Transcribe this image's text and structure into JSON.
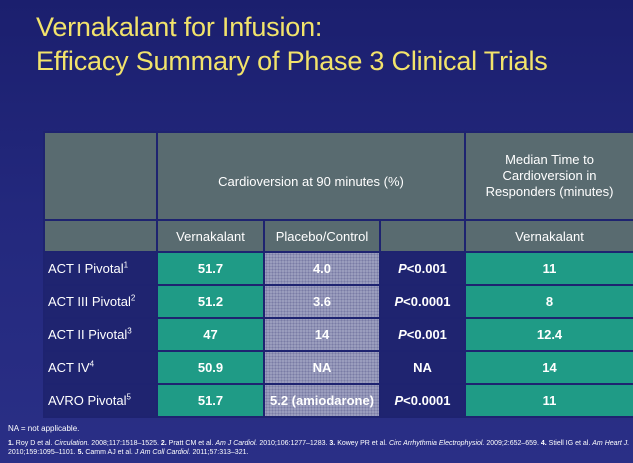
{
  "title": {
    "line1": "Vernakalant for Infusion:",
    "line2": "Efficacy Summary of Phase 3 Clinical Trials"
  },
  "table": {
    "header": {
      "cardioversion": "Cardioversion at 90 minutes (%)",
      "median": "Median Time to Cardioversion in Responders (minutes)",
      "col_vernakalant": "Vernakalant",
      "col_placebo": "Placebo/Control",
      "col_median_vernakalant": "Vernakalant"
    },
    "rows": [
      {
        "label": "ACT I Pivotal",
        "sup": "1",
        "vernakalant": "51.7",
        "placebo": "4.0",
        "p_prefix": "P",
        "p_value": "<0.001",
        "median": "11"
      },
      {
        "label": "ACT III Pivotal",
        "sup": "2",
        "vernakalant": "51.2",
        "placebo": "3.6",
        "p_prefix": "P",
        "p_value": "<0.0001",
        "median": "8"
      },
      {
        "label": "ACT II Pivotal",
        "sup": "3",
        "vernakalant": "47",
        "placebo": "14",
        "p_prefix": "P",
        "p_value": "<0.001",
        "median": "12.4"
      },
      {
        "label": "ACT IV",
        "sup": "4",
        "vernakalant": "50.9",
        "placebo": "NA",
        "p_prefix": "",
        "p_value": "NA",
        "median": "14"
      },
      {
        "label": "AVRO Pivotal",
        "sup": "5",
        "vernakalant": "51.7",
        "placebo": "5.2 (amiodarone)",
        "p_prefix": "P",
        "p_value": "<0.0001",
        "median": "11"
      }
    ]
  },
  "footnote": "NA = not applicable.",
  "references": {
    "r1_num": "1.",
    "r1_authors": "Roy D et al.",
    "r1_journal": "Circulation.",
    "r1_cite": "2008;117:1518–1525.",
    "r2_num": "2.",
    "r2_authors": "Pratt CM et al.",
    "r2_journal": "Am J Cardiol.",
    "r2_cite": "2010;106:1277–1283.",
    "r3_num": "3.",
    "r3_authors": "Kowey PR et al.",
    "r3_journal": "Circ Arrhythmia Electrophysiol.",
    "r3_cite": "2009;2:652–659.",
    "r4_num": "4.",
    "r4_authors": "Stiell IG et al.",
    "r4_journal": "Am Heart J.",
    "r4_cite": "2010;159:1095–1101.",
    "r5_num": "5.",
    "r5_authors": "Camm AJ et al.",
    "r5_journal": "J Am Coll Cardiol.",
    "r5_cite": "2011;57:313–321."
  }
}
